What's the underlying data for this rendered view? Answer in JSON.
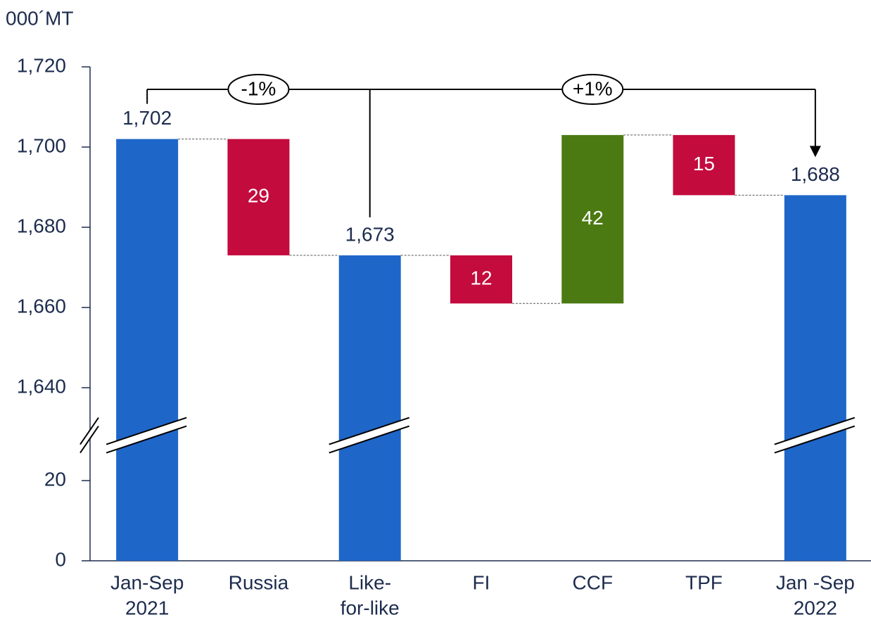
{
  "chart_data": {
    "type": "waterfall",
    "unit_label": "000´MT",
    "categories": [
      [
        "Jan-Sep",
        "2021"
      ],
      [
        "Russia"
      ],
      [
        "Like-",
        "for-like"
      ],
      [
        "FI"
      ],
      [
        "CCF"
      ],
      [
        "TPF"
      ],
      [
        "Jan -Sep",
        "2022"
      ]
    ],
    "measure": [
      "total",
      "decrease",
      "total",
      "decrease",
      "increase",
      "decrease",
      "total"
    ],
    "values": [
      1702,
      29,
      1673,
      12,
      42,
      15,
      1688
    ],
    "value_labels": [
      "1,702",
      "29",
      "1,673",
      "12",
      "42",
      "15",
      "1,688"
    ],
    "colors": {
      "total": "#1f66c9",
      "decrease": "#c30b3d",
      "increase": "#4b7a12"
    },
    "ylim": [
      0,
      1720
    ],
    "axis_break": [
      32,
      1628
    ],
    "yticks": [
      0,
      20,
      {
        "value": 1640,
        "label": "1,640"
      },
      {
        "value": 1660,
        "label": "1,660"
      },
      {
        "value": 1680,
        "label": "1,680"
      },
      {
        "value": 1700,
        "label": "1,700"
      },
      {
        "value": 1720,
        "label": "1,720"
      }
    ],
    "annotations": [
      {
        "text": "-1%",
        "from": 0,
        "to": 2
      },
      {
        "text": "+1%",
        "from": 2,
        "to": 6
      }
    ]
  }
}
